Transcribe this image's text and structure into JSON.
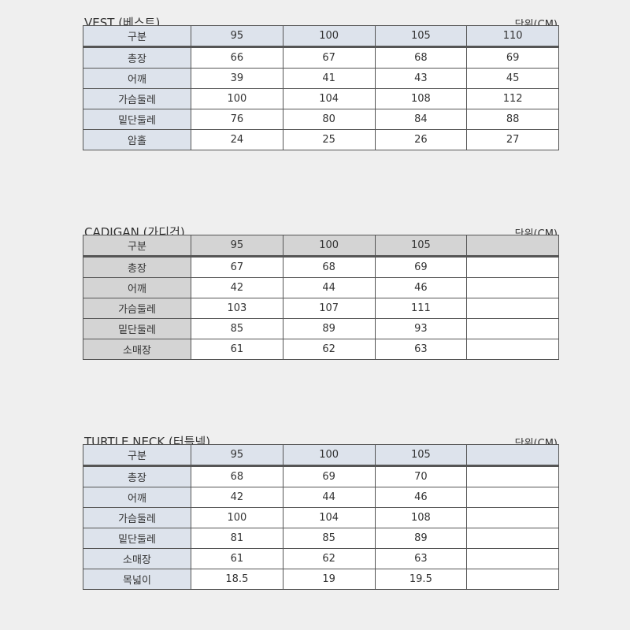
{
  "tables": [
    {
      "title": "VEST (베스트)",
      "unit": "단위(CM)",
      "theme": "#dde3ec",
      "header": [
        "구분",
        "95",
        "100",
        "105",
        "110"
      ],
      "rows": [
        [
          "총장",
          "66",
          "67",
          "68",
          "69"
        ],
        [
          "어깨",
          "39",
          "41",
          "43",
          "45"
        ],
        [
          "가슴둘레",
          "100",
          "104",
          "108",
          "112"
        ],
        [
          "밑단둘레",
          "76",
          "80",
          "84",
          "88"
        ],
        [
          "암홀",
          "24",
          "25",
          "26",
          "27"
        ]
      ]
    },
    {
      "title": "CADIGAN (가디건)",
      "unit": "단위(CM)",
      "theme": "#d4d4d4",
      "header": [
        "구분",
        "95",
        "100",
        "105",
        ""
      ],
      "rows": [
        [
          "총장",
          "67",
          "68",
          "69",
          ""
        ],
        [
          "어깨",
          "42",
          "44",
          "46",
          ""
        ],
        [
          "가슴둘레",
          "103",
          "107",
          "111",
          ""
        ],
        [
          "밑단둘레",
          "85",
          "89",
          "93",
          ""
        ],
        [
          "소매장",
          "61",
          "62",
          "63",
          ""
        ]
      ]
    },
    {
      "title": "TURTLE NECK (터틀넥)",
      "unit": "단위(CM)",
      "theme": "#dde3ec",
      "header": [
        "구분",
        "95",
        "100",
        "105",
        ""
      ],
      "rows": [
        [
          "총장",
          "68",
          "69",
          "70",
          ""
        ],
        [
          "어깨",
          "42",
          "44",
          "46",
          ""
        ],
        [
          "가슴둘레",
          "100",
          "104",
          "108",
          ""
        ],
        [
          "밑단둘레",
          "81",
          "85",
          "89",
          ""
        ],
        [
          "소매장",
          "61",
          "62",
          "63",
          ""
        ],
        [
          "목넓이",
          "18.5",
          "19",
          "19.5",
          ""
        ]
      ]
    }
  ]
}
